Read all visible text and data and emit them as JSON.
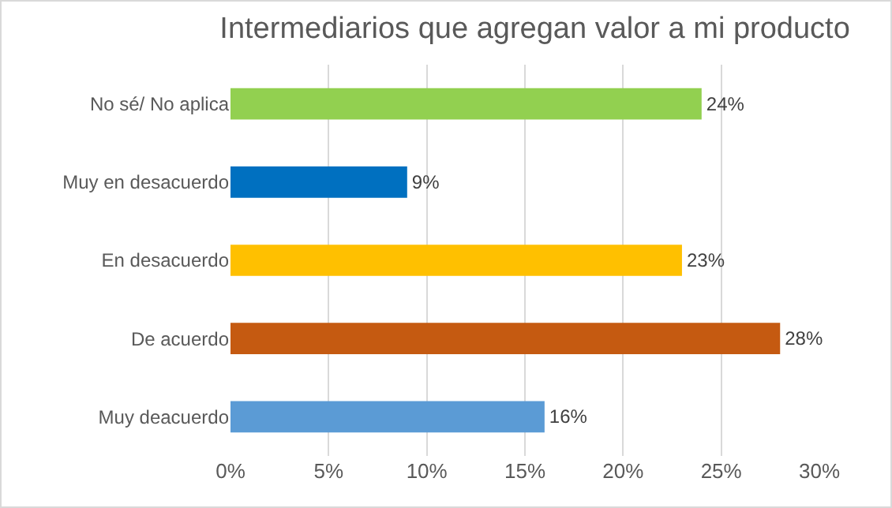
{
  "chart_data": {
    "type": "bar",
    "orientation": "horizontal",
    "title": "Intermediarios que agregan valor a mi producto",
    "categories": [
      "No sé/ No aplica",
      "Muy en desacuerdo",
      "En desacuerdo",
      "De acuerdo",
      "Muy deacuerdo"
    ],
    "values": [
      24,
      9,
      23,
      28,
      16
    ],
    "colors": [
      "#92d050",
      "#0070c0",
      "#ffc000",
      "#c55a11",
      "#5b9bd5"
    ],
    "value_labels": [
      "24%",
      "9%",
      "23%",
      "28%",
      "16%"
    ],
    "xlim": [
      0,
      30
    ],
    "xticks": [
      {
        "value": 0,
        "label": "0%"
      },
      {
        "value": 5,
        "label": "5%"
      },
      {
        "value": 10,
        "label": "10%"
      },
      {
        "value": 15,
        "label": "15%"
      },
      {
        "value": 20,
        "label": "20%"
      },
      {
        "value": 25,
        "label": "25%"
      },
      {
        "value": 30,
        "label": "30%"
      }
    ],
    "grid": "x"
  }
}
